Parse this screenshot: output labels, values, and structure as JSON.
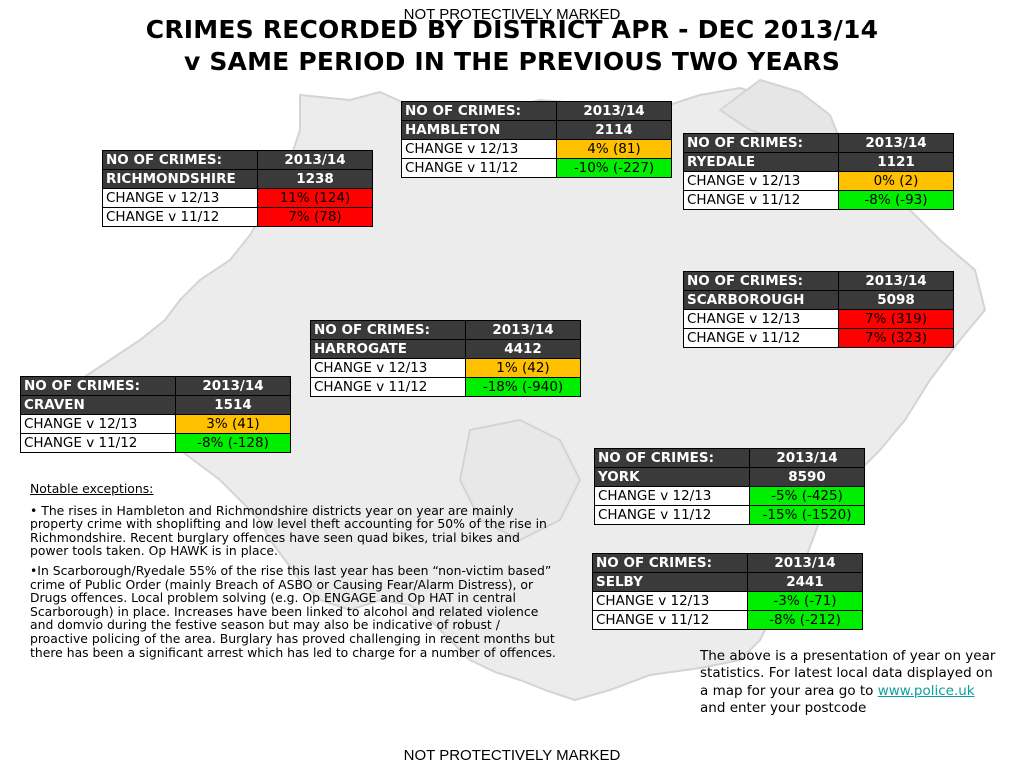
{
  "header": {
    "marking_top": "NOT PROTECTIVELY MARKED",
    "title_line1": "CRIMES RECORDED BY DISTRICT APR - DEC 2013/14",
    "title_line2": "v SAME PERIOD IN THE PREVIOUS TWO YEARS"
  },
  "footer": {
    "marking_bottom": "NOT PROTECTIVELY MARKED"
  },
  "districts": [
    {
      "id": "hambleton",
      "label": "NO OF CRIMES:",
      "year": "2013/14",
      "name": "HAMBLETON",
      "total": "2114",
      "change1_label": "CHANGE v 12/13",
      "change1": "4% (81)",
      "change1_status": "amber",
      "change2_label": "CHANGE v 11/12",
      "change2": "-10% (-227)",
      "change2_status": "green"
    },
    {
      "id": "richmondshire",
      "label": "NO OF CRIMES:",
      "year": "2013/14",
      "name": "RICHMONDSHIRE",
      "total": "1238",
      "change1_label": "CHANGE v 12/13",
      "change1": "11% (124)",
      "change1_status": "red",
      "change2_label": "CHANGE v 11/12",
      "change2": "7% (78)",
      "change2_status": "red"
    },
    {
      "id": "ryedale",
      "label": "NO OF CRIMES:",
      "year": "2013/14",
      "name": "RYEDALE",
      "total": "1121",
      "change1_label": "CHANGE v 12/13",
      "change1": "0% (2)",
      "change1_status": "amber",
      "change2_label": "CHANGE v 11/12",
      "change2": "-8% (-93)",
      "change2_status": "green"
    },
    {
      "id": "scarborough",
      "label": "NO OF CRIMES:",
      "year": "2013/14",
      "name": "SCARBOROUGH",
      "total": "5098",
      "change1_label": "CHANGE v 12/13",
      "change1": "7% (319)",
      "change1_status": "red",
      "change2_label": "CHANGE v 11/12",
      "change2": "7% (323)",
      "change2_status": "red"
    },
    {
      "id": "harrogate",
      "label": "NO OF CRIMES:",
      "year": "2013/14",
      "name": "HARROGATE",
      "total": "4412",
      "change1_label": "CHANGE v 12/13",
      "change1": "1% (42)",
      "change1_status": "amber",
      "change2_label": "CHANGE v 11/12",
      "change2": "-18% (-940)",
      "change2_status": "green"
    },
    {
      "id": "craven",
      "label": "NO OF CRIMES:",
      "year": "2013/14",
      "name": "CRAVEN",
      "total": "1514",
      "change1_label": "CHANGE v 12/13",
      "change1": "3% (41)",
      "change1_status": "amber",
      "change2_label": "CHANGE v 11/12",
      "change2": "-8% (-128)",
      "change2_status": "green"
    },
    {
      "id": "york",
      "label": "NO OF CRIMES:",
      "year": "2013/14",
      "name": "YORK",
      "total": "8590",
      "change1_label": "CHANGE v 12/13",
      "change1": "-5% (-425)",
      "change1_status": "green",
      "change2_label": "CHANGE v 11/12",
      "change2": "-15% (-1520)",
      "change2_status": "green"
    },
    {
      "id": "selby",
      "label": "NO OF CRIMES:",
      "year": "2013/14",
      "name": "SELBY",
      "total": "2441",
      "change1_label": "CHANGE v 12/13",
      "change1": "-3% (-71)",
      "change1_status": "green",
      "change2_label": "CHANGE v 11/12",
      "change2": "-8% (-212)",
      "change2_status": "green"
    }
  ],
  "notes": {
    "heading": "Notable exceptions:",
    "paragraph1": "• The rises in Hambleton and Richmondshire districts year on year are mainly property crime with shoplifting and low level theft accounting for 50% of the rise in Richmondshire.  Recent burglary offences have seen quad bikes, trial bikes and power tools taken. Op HAWK is in place.",
    "paragraph2": "•In Scarborough/Ryedale 55% of the rise this last year has been “non-victim based” crime of Public Order (mainly Breach of ASBO or Causing Fear/Alarm Distress), or Drugs offences. Local problem solving (e.g. Op ENGAGE and Op HAT in central Scarborough) in place. Increases have been linked to alcohol and related violence and domvio during the festive season but may also be indicative of robust / proactive policing of the area.  Burglary has proved challenging in recent months but there has been a significant arrest which has led to charge for a number of offences."
  },
  "info": {
    "text_before": "The above is a presentation of year on year statistics.  For latest local data displayed on a map for your area go to ",
    "link_text": "www.police.uk",
    "text_after": " and enter your postcode"
  },
  "colors": {
    "amber": "#ffc000",
    "red": "#ff0000",
    "green": "#00ee00",
    "header_bg": "#3a3a3a",
    "map_fill": "#ececec"
  }
}
